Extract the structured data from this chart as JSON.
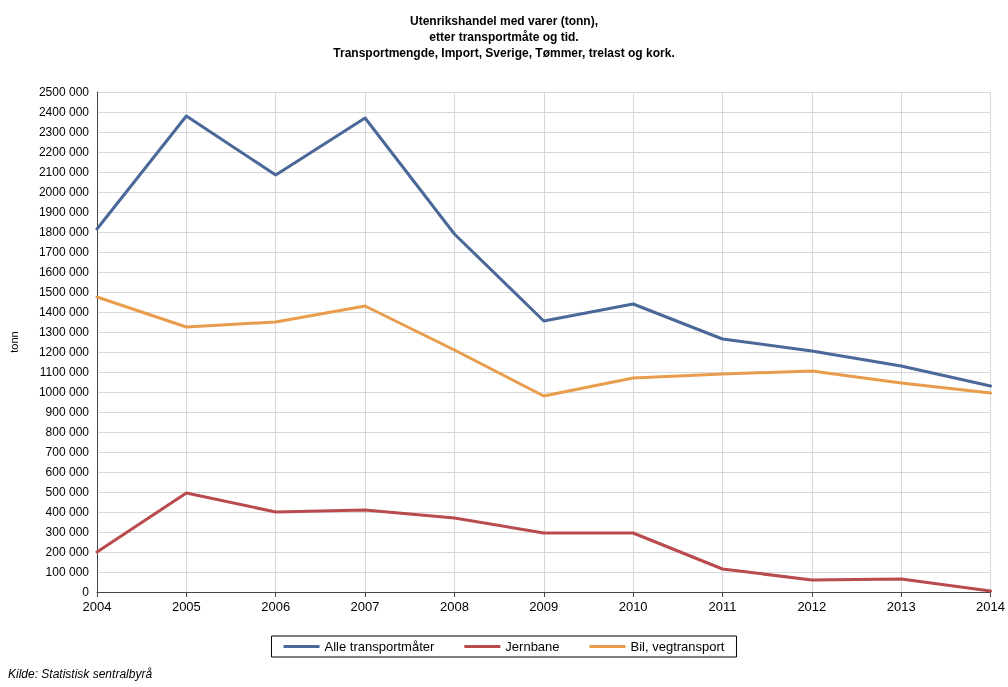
{
  "chart_data": {
    "type": "line",
    "title": "Utenrikshandel med varer (tonn),\netter transportmåte og tid.\nTransportmengde, Import, Sverige, Tømmer, trelast og kork.",
    "ylabel": "tonn",
    "x": [
      2004,
      2005,
      2006,
      2007,
      2008,
      2009,
      2010,
      2011,
      2012,
      2013,
      2014
    ],
    "xlim": [
      2004,
      2014
    ],
    "xticks": [
      2004,
      2005,
      2006,
      2007,
      2008,
      2009,
      2010,
      2011,
      2012,
      2013,
      2014
    ],
    "ylim": [
      0,
      2500000
    ],
    "yticks": [
      0,
      {
        "value": 100000,
        "label": "100 000"
      },
      {
        "value": 200000,
        "label": "200 000"
      },
      {
        "value": 300000,
        "label": "300 000"
      },
      {
        "value": 400000,
        "label": "400 000"
      },
      {
        "value": 500000,
        "label": "500 000"
      },
      {
        "value": 600000,
        "label": "600 000"
      },
      {
        "value": 700000,
        "label": "700 000"
      },
      {
        "value": 800000,
        "label": "800 000"
      },
      {
        "value": 900000,
        "label": "900 000"
      },
      {
        "value": 1000000,
        "label": "1000 000"
      },
      {
        "value": 1100000,
        "label": "1100 000"
      },
      {
        "value": 1200000,
        "label": "1200 000"
      },
      {
        "value": 1300000,
        "label": "1300 000"
      },
      {
        "value": 1400000,
        "label": "1400 000"
      },
      {
        "value": 1500000,
        "label": "1500 000"
      },
      {
        "value": 1600000,
        "label": "1600 000"
      },
      {
        "value": 1700000,
        "label": "1700 000"
      },
      {
        "value": 1800000,
        "label": "1800 000"
      },
      {
        "value": 1900000,
        "label": "1900 000"
      },
      {
        "value": 2000000,
        "label": "2000 000"
      },
      {
        "value": 2100000,
        "label": "2100 000"
      },
      {
        "value": 2200000,
        "label": "2200 000"
      },
      {
        "value": 2300000,
        "label": "2300 000"
      },
      {
        "value": 2400000,
        "label": "2400 000"
      },
      {
        "value": 2500000,
        "label": "2500 000"
      }
    ],
    "series": [
      {
        "name": "Alle transportmåter",
        "color": "#4a6898",
        "values": [
          1815000,
          2380000,
          2085000,
          2370000,
          1790000,
          1355000,
          1440000,
          1265000,
          1205000,
          1130000,
          1030000
        ]
      },
      {
        "name": "Jernbane",
        "color": "#b94a4e",
        "values": [
          200000,
          495000,
          400000,
          410000,
          370000,
          295000,
          295000,
          115000,
          60000,
          65000,
          5000
        ]
      },
      {
        "name": "Bil, vegtransport",
        "color": "#e89c4c",
        "values": [
          1475000,
          1325000,
          1350000,
          1430000,
          1210000,
          980000,
          1070000,
          1090000,
          1105000,
          1045000,
          995000
        ]
      }
    ],
    "grid": true,
    "legend": "bottom",
    "marker": "none",
    "line_style": "solid",
    "annotations": [
      "Kilde: Statistisk sentralbyrå"
    ]
  }
}
